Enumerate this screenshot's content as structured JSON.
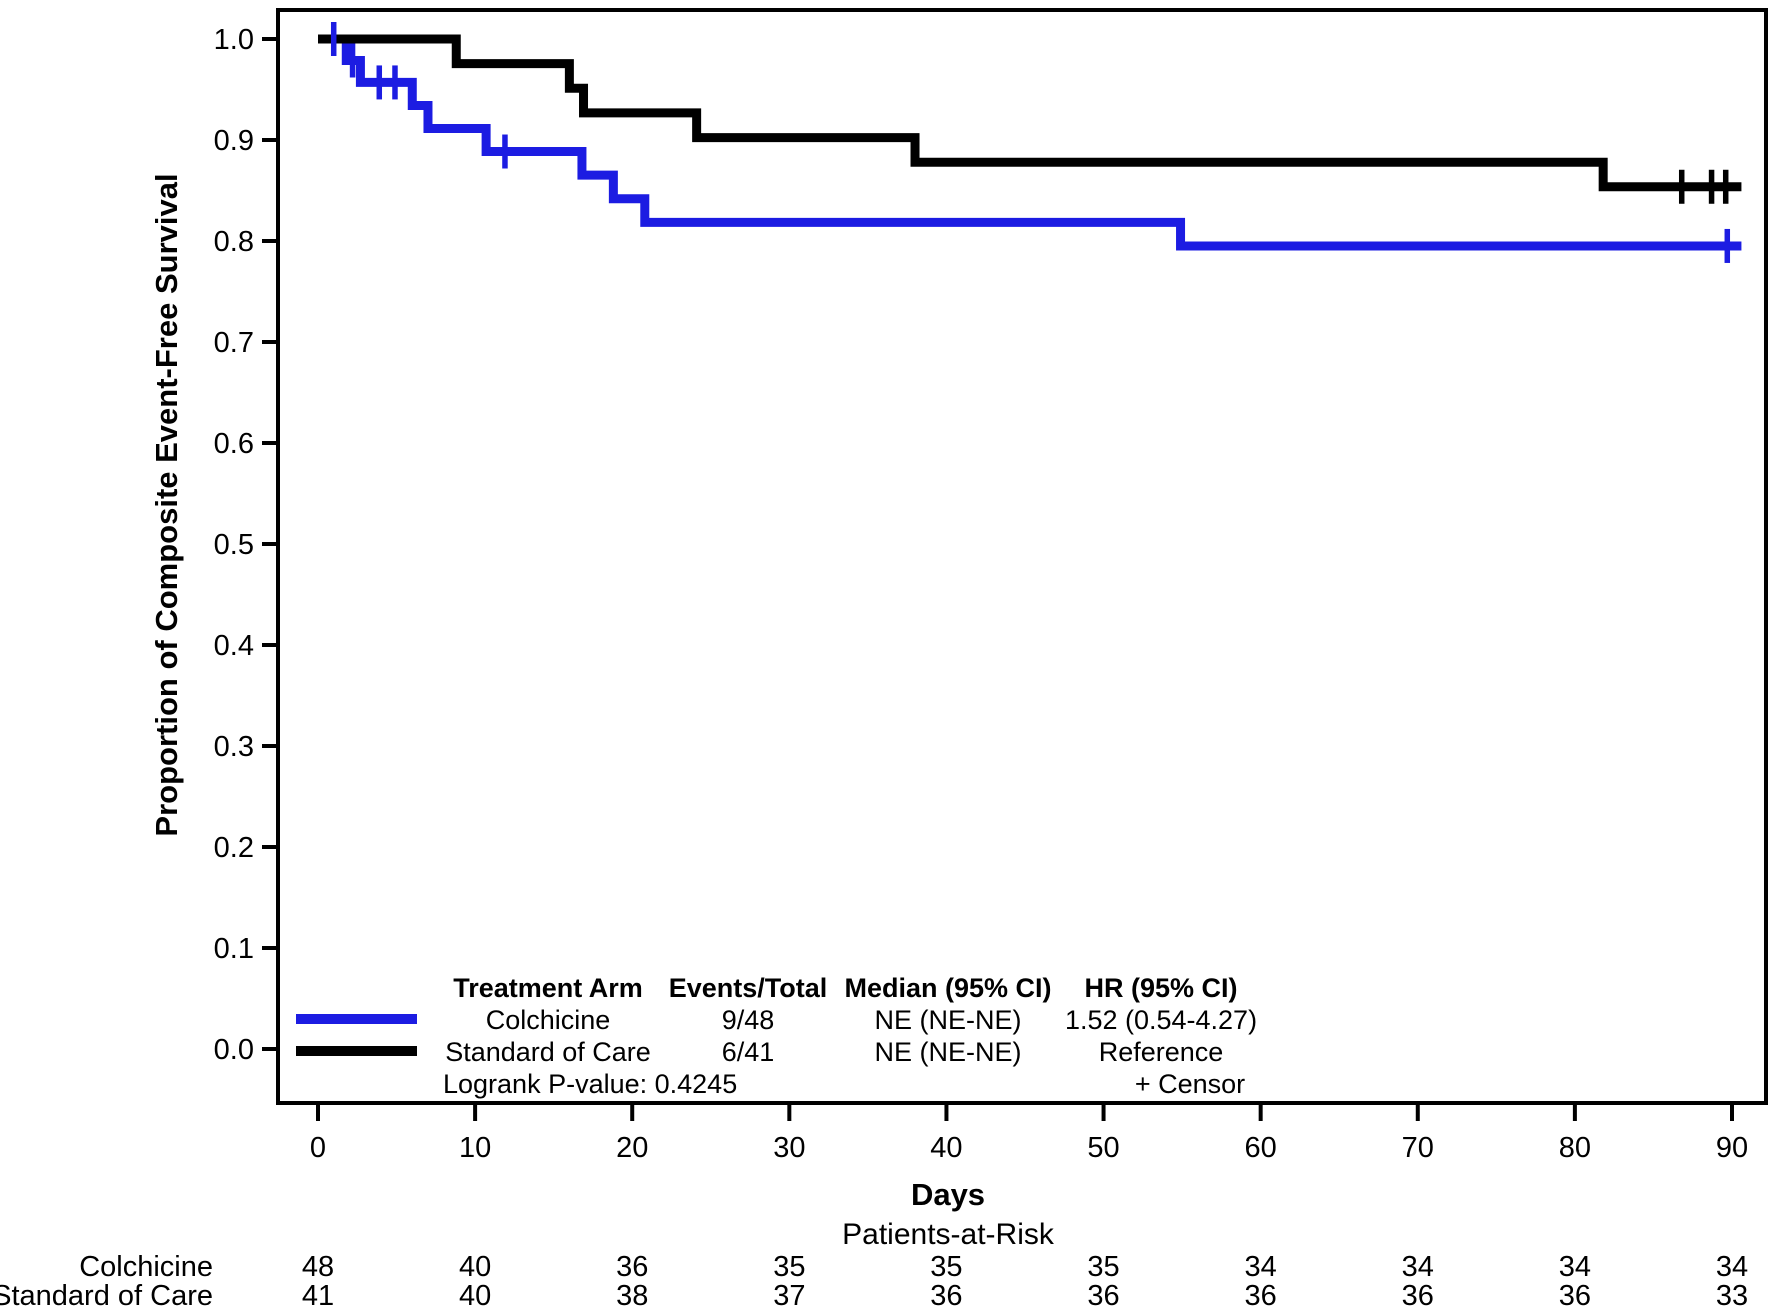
{
  "chart_data": {
    "type": "line",
    "subtype": "kaplan-meier-step",
    "title": "",
    "ylabel": "Proportion of Composite Event-Free Survival",
    "xlabel": "Days",
    "at_risk_title": "Patients-at-Risk",
    "xlim": [
      0,
      90
    ],
    "ylim": [
      0.0,
      1.0
    ],
    "grid": false,
    "legend_position": "inside-bottom-left",
    "xticks": [
      "0",
      "10",
      "20",
      "30",
      "40",
      "50",
      "60",
      "70",
      "80",
      "90"
    ],
    "yticks": [
      "0.0",
      "0.1",
      "0.2",
      "0.3",
      "0.4",
      "0.5",
      "0.6",
      "0.7",
      "0.8",
      "0.9",
      "1.0"
    ],
    "series": [
      {
        "name": "Colchicine",
        "color": "#1c1ce2",
        "end_day": 90.6,
        "steps": [
          [
            0,
            1.0
          ],
          [
            1.8,
            0.9787
          ],
          [
            2.7,
            0.957
          ],
          [
            6.0,
            0.9342
          ],
          [
            7.0,
            0.9114
          ],
          [
            10.7,
            0.8886
          ],
          [
            16.8,
            0.8652
          ],
          [
            18.8,
            0.8418
          ],
          [
            20.8,
            0.8185
          ],
          [
            54.9,
            0.7951
          ]
        ],
        "censors": [
          [
            1.0,
            1.0
          ],
          [
            2.2,
            0.9787
          ],
          [
            3.9,
            0.957
          ],
          [
            4.9,
            0.957
          ],
          [
            11.9,
            0.8886
          ],
          [
            89.7,
            0.7951
          ]
        ]
      },
      {
        "name": "Standard of Care",
        "color": "#000000",
        "end_day": 90.6,
        "steps": [
          [
            0,
            1.0
          ],
          [
            8.8,
            0.9756
          ],
          [
            16.0,
            0.9512
          ],
          [
            16.9,
            0.9268
          ],
          [
            24.1,
            0.9024
          ],
          [
            38.0,
            0.878
          ],
          [
            81.8,
            0.8537
          ]
        ],
        "censors": [
          [
            86.8,
            0.8537
          ],
          [
            88.7,
            0.8537
          ],
          [
            89.6,
            0.8537
          ]
        ]
      }
    ],
    "legend": {
      "col_headers": {
        "arm": "Treatment Arm",
        "events": "Events/Total",
        "median": "Median (95% CI)",
        "hr": "HR (95% CI)"
      },
      "rows": [
        {
          "arm": "Colchicine",
          "events": "9/48",
          "median": "NE (NE-NE)",
          "hr": "1.52 (0.54-4.27)"
        },
        {
          "arm": "Standard of Care",
          "events": "6/41",
          "median": "NE (NE-NE)",
          "hr": "Reference"
        }
      ],
      "logrank": "Logrank P-value: 0.4245",
      "censor_note": "+  Censor"
    },
    "at_risk": {
      "rows": [
        {
          "name": "Colchicine",
          "color": "#1c1ce2",
          "values": [
            "48",
            "40",
            "36",
            "35",
            "35",
            "35",
            "34",
            "34",
            "34",
            "34"
          ]
        },
        {
          "name": "Standard of Care",
          "color": "#000000",
          "values": [
            "41",
            "40",
            "38",
            "37",
            "36",
            "36",
            "36",
            "36",
            "36",
            "33"
          ]
        }
      ]
    }
  }
}
